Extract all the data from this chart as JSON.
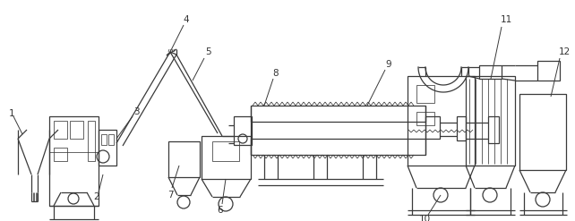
{
  "bg_color": "#ffffff",
  "line_color": "#3a3a3a",
  "lw": 0.9,
  "lw_thin": 0.55,
  "label_color": "#333333",
  "label_fontsize": 7.5,
  "fig_width": 6.42,
  "fig_height": 2.47,
  "dpi": 100
}
